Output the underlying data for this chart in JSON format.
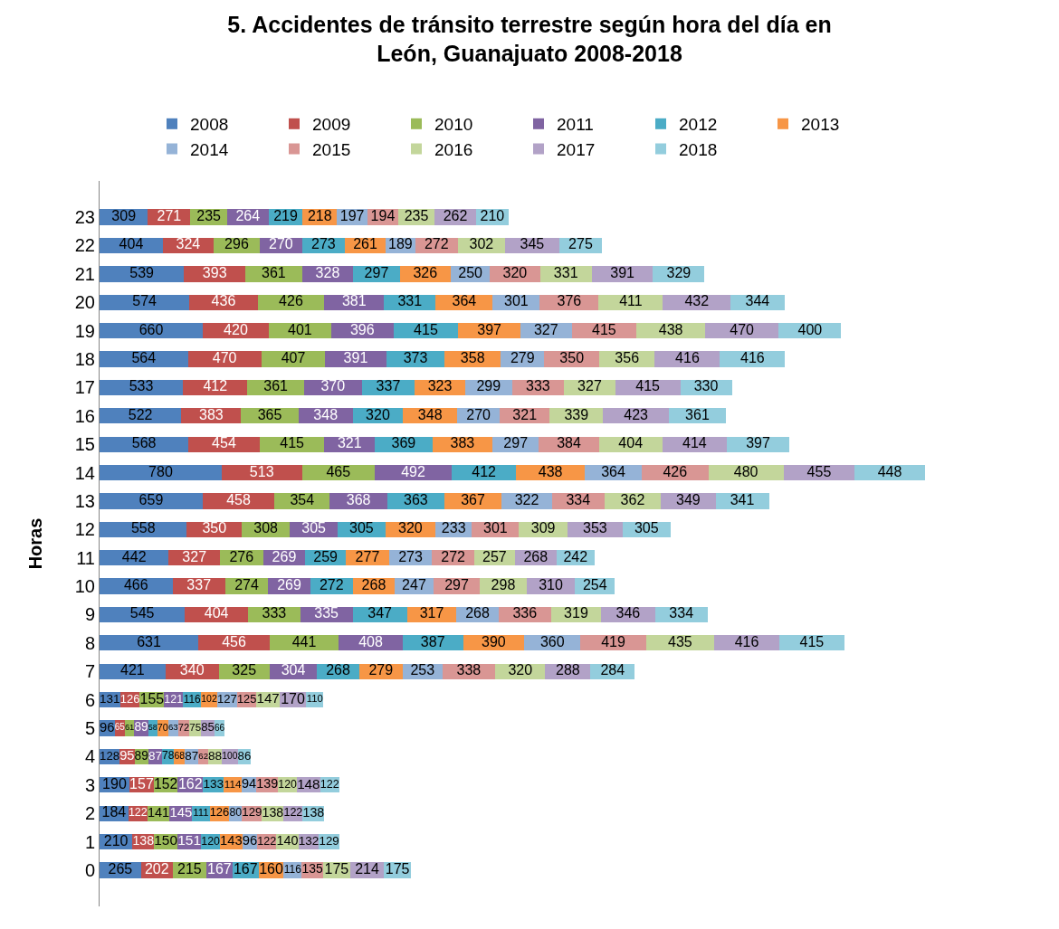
{
  "chart_data": {
    "type": "bar",
    "orientation": "horizontal",
    "stacked": true,
    "data_labels": true,
    "title": "5. Accidentes de tránsito terrestre según hora del día en León, Guanajuato 2008-2018",
    "ylabel": "Horas",
    "legend": "top",
    "categories": [
      "23",
      "22",
      "21",
      "20",
      "19",
      "18",
      "17",
      "16",
      "15",
      "14",
      "13",
      "12",
      "11",
      "10",
      "9",
      "8",
      "7",
      "6",
      "5",
      "4",
      "3",
      "2",
      "1",
      "0"
    ],
    "series": [
      {
        "name": "2008",
        "color": "#4f81bd",
        "values": [
          309,
          404,
          539,
          574,
          660,
          564,
          533,
          522,
          568,
          780,
          659,
          558,
          442,
          466,
          545,
          631,
          421,
          131,
          96,
          128,
          190,
          184,
          210,
          265
        ]
      },
      {
        "name": "2009",
        "color": "#c0504d",
        "values": [
          271,
          324,
          393,
          436,
          420,
          470,
          412,
          383,
          454,
          513,
          458,
          350,
          327,
          337,
          404,
          456,
          340,
          126,
          65,
          95,
          157,
          122,
          138,
          202
        ]
      },
      {
        "name": "2010",
        "color": "#9bbb59",
        "values": [
          235,
          296,
          361,
          426,
          401,
          407,
          361,
          365,
          415,
          465,
          354,
          308,
          276,
          274,
          333,
          441,
          325,
          155,
          61,
          89,
          152,
          141,
          150,
          215
        ]
      },
      {
        "name": "2011",
        "color": "#8064a2",
        "values": [
          264,
          270,
          328,
          381,
          396,
          391,
          370,
          348,
          321,
          492,
          368,
          305,
          269,
          269,
          335,
          408,
          304,
          121,
          89,
          87,
          162,
          145,
          151,
          167
        ]
      },
      {
        "name": "2012",
        "color": "#4bacc6",
        "values": [
          219,
          273,
          297,
          331,
          415,
          373,
          337,
          320,
          369,
          412,
          363,
          305,
          259,
          272,
          347,
          387,
          268,
          116,
          58,
          78,
          133,
          111,
          120,
          167
        ]
      },
      {
        "name": "2013",
        "color": "#f79646",
        "values": [
          218,
          261,
          326,
          364,
          397,
          358,
          323,
          348,
          383,
          438,
          367,
          320,
          277,
          268,
          317,
          390,
          279,
          102,
          70,
          68,
          114,
          126,
          143,
          160
        ]
      },
      {
        "name": "2014",
        "color": "#95b3d7",
        "values": [
          197,
          189,
          250,
          301,
          327,
          279,
          299,
          270,
          297,
          364,
          322,
          233,
          273,
          247,
          268,
          360,
          253,
          127,
          63,
          87,
          94,
          80,
          96,
          116
        ]
      },
      {
        "name": "2015",
        "color": "#d99694",
        "values": [
          194,
          272,
          320,
          376,
          415,
          350,
          333,
          321,
          384,
          426,
          334,
          301,
          272,
          297,
          336,
          419,
          338,
          125,
          72,
          62,
          139,
          129,
          122,
          135
        ]
      },
      {
        "name": "2016",
        "color": "#c3d69b",
        "values": [
          235,
          302,
          331,
          411,
          438,
          356,
          327,
          339,
          404,
          480,
          362,
          309,
          257,
          298,
          319,
          435,
          320,
          147,
          75,
          88,
          120,
          138,
          140,
          175
        ]
      },
      {
        "name": "2017",
        "color": "#b2a2c7",
        "values": [
          262,
          345,
          391,
          432,
          470,
          416,
          415,
          423,
          414,
          455,
          349,
          353,
          268,
          310,
          346,
          416,
          288,
          170,
          85,
          100,
          148,
          122,
          132,
          214
        ]
      },
      {
        "name": "2018",
        "color": "#93cddd",
        "values": [
          210,
          275,
          329,
          344,
          400,
          416,
          330,
          361,
          397,
          448,
          341,
          305,
          242,
          254,
          334,
          415,
          284,
          110,
          66,
          86,
          122,
          138,
          129,
          175
        ]
      }
    ]
  }
}
